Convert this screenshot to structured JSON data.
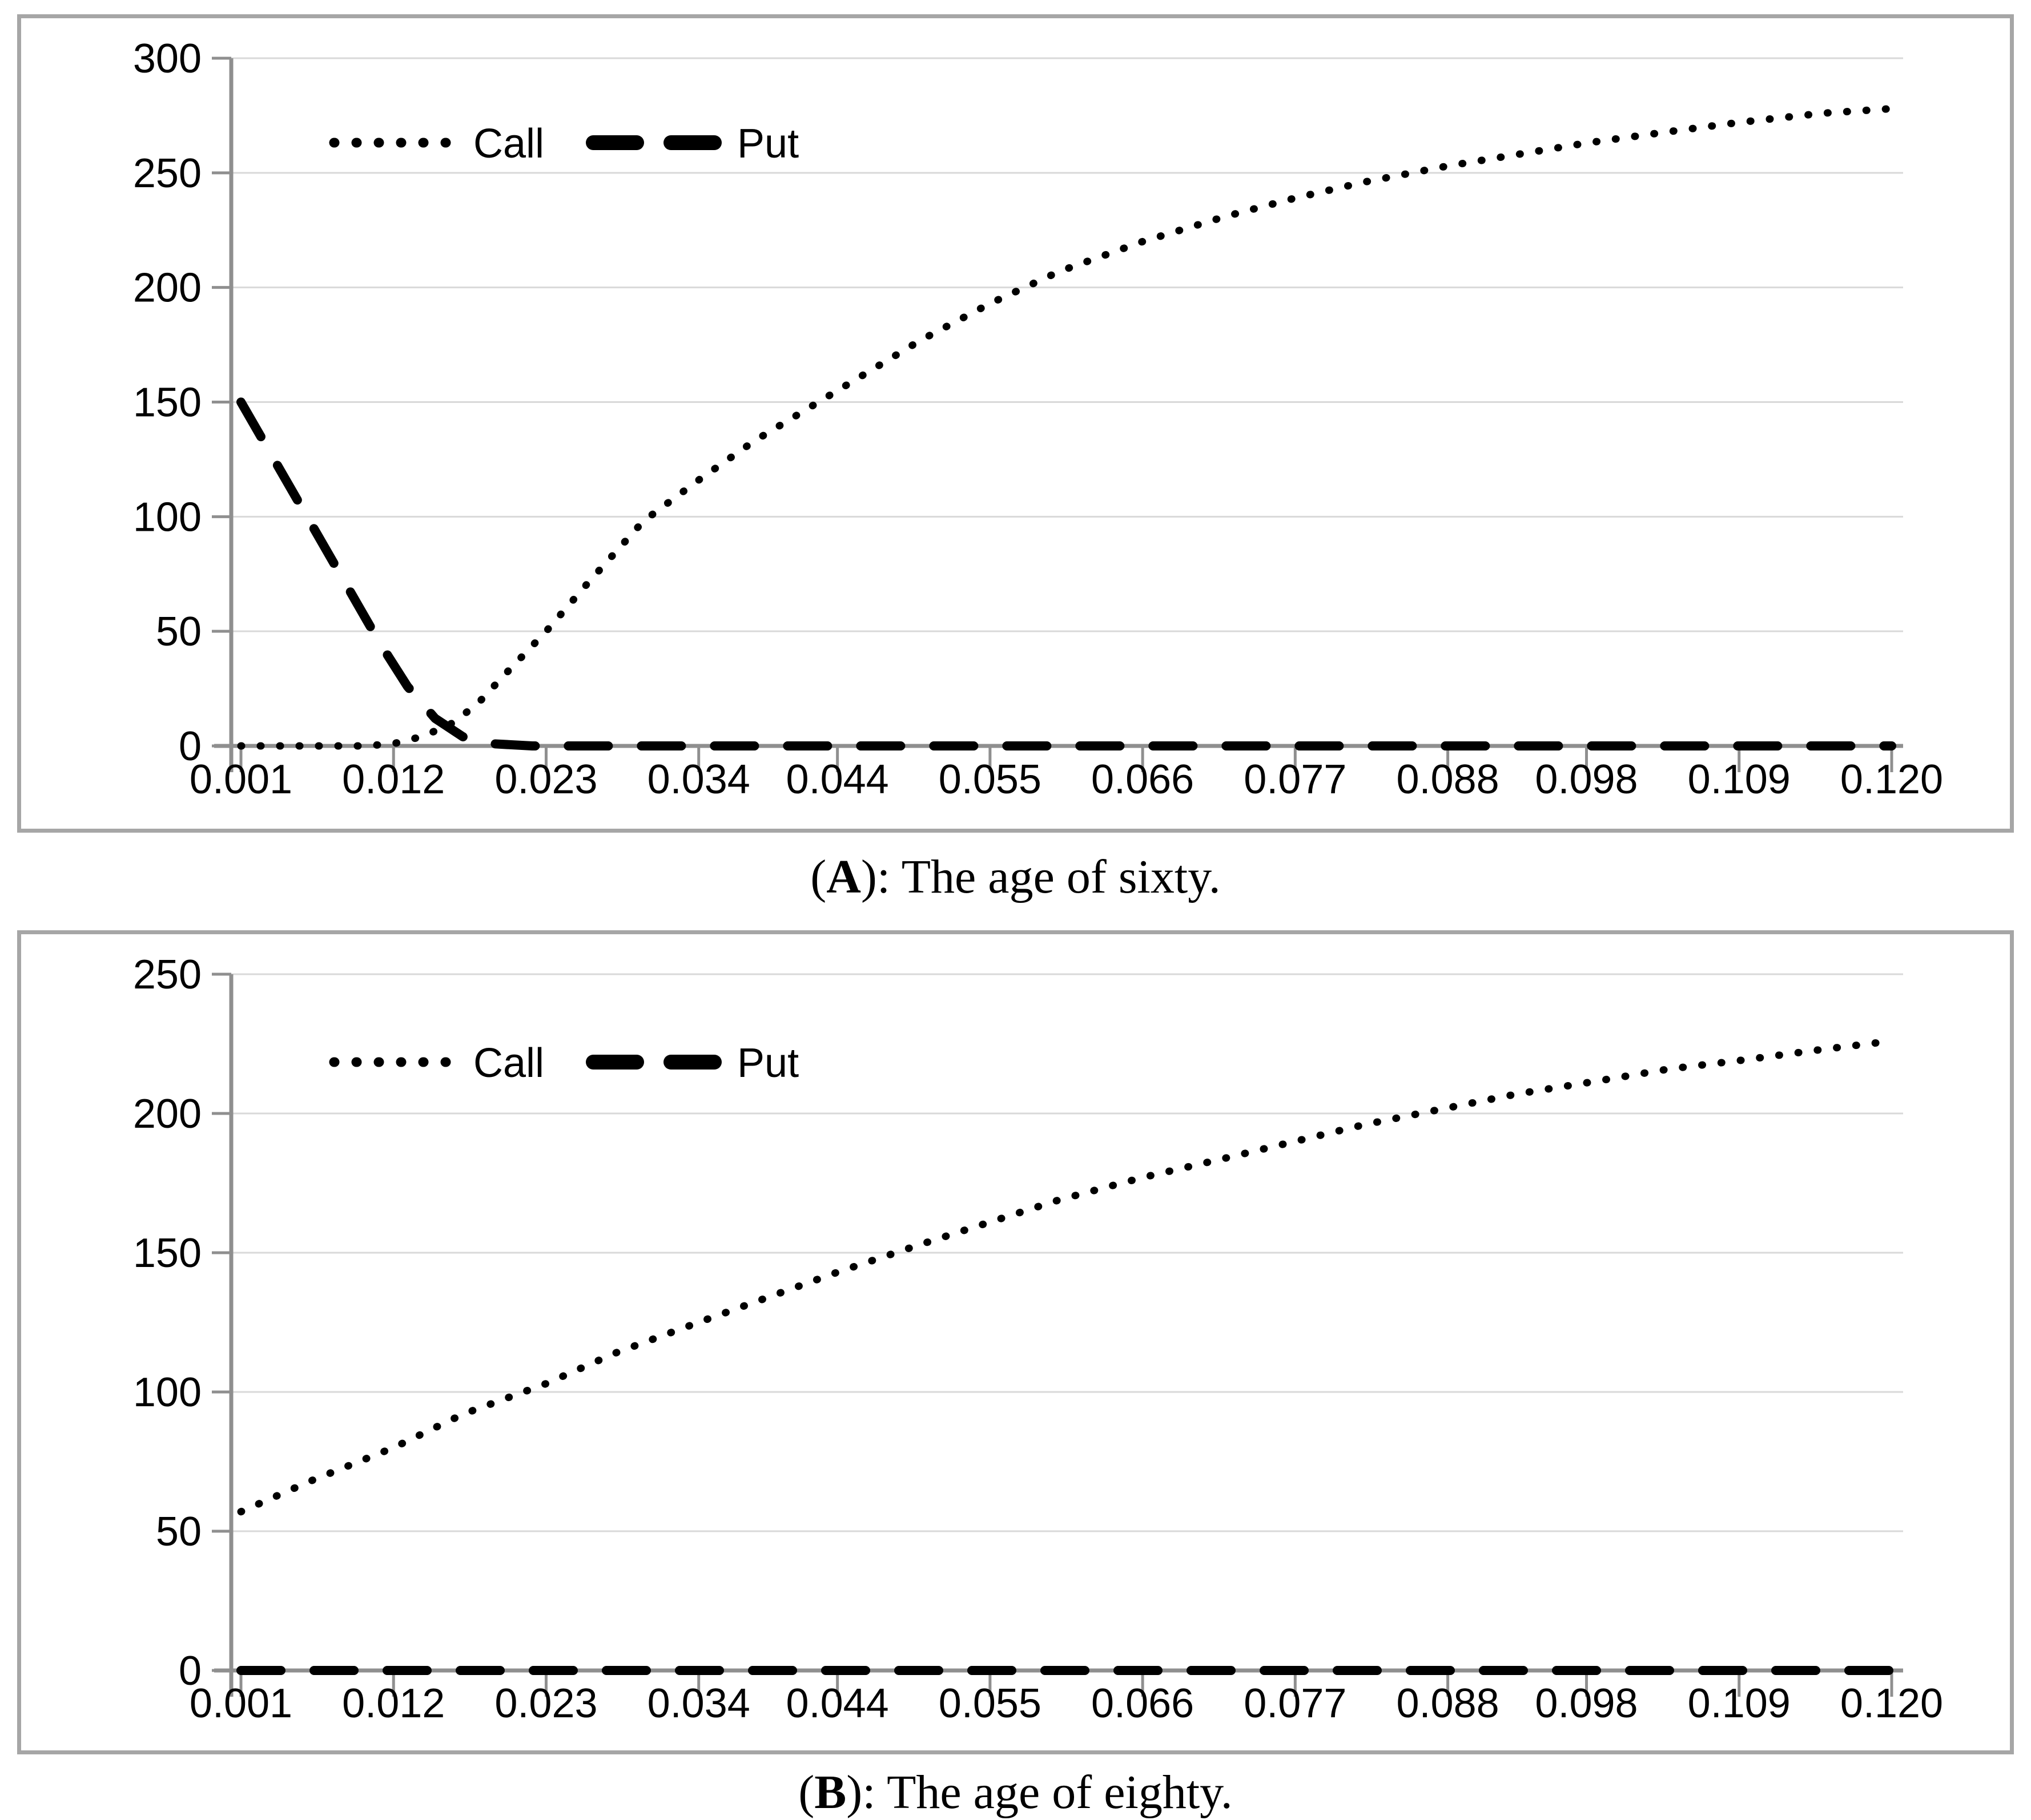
{
  "colors": {
    "background": "#ffffff",
    "box_border": "#a6a6a6",
    "axis": "#8f8f8f",
    "gridline": "#d9d9d9",
    "series": "#000000",
    "text": "#000000"
  },
  "charts": [
    {
      "id": "A",
      "caption": {
        "open": "(",
        "letter": "A",
        "rest": "): The age of sixty."
      },
      "chart_data": {
        "type": "line",
        "title": "",
        "xlabel": "",
        "ylabel": "",
        "xlim": [
          0.001,
          0.12
        ],
        "ylim": [
          0,
          300
        ],
        "grid": "horizontal",
        "legend_position": "top-left-inside",
        "x_tick_labels": [
          "0.001",
          "0.012",
          "0.023",
          "0.034",
          "0.044",
          "0.055",
          "0.066",
          "0.077",
          "0.088",
          "0.098",
          "0.109",
          "0.120"
        ],
        "y_ticks": [
          0,
          50,
          100,
          150,
          200,
          250,
          300
        ],
        "series": [
          {
            "name": "Call",
            "style": "dotted",
            "x": [
              0.001,
              0.004,
              0.007,
              0.01,
              0.012,
              0.014,
              0.016,
              0.018,
              0.02,
              0.023,
              0.026,
              0.03,
              0.034,
              0.038,
              0.044,
              0.05,
              0.055,
              0.06,
              0.066,
              0.072,
              0.077,
              0.082,
              0.088,
              0.093,
              0.098,
              0.104,
              0.109,
              0.115,
              0.12
            ],
            "y": [
              0,
              0,
              0,
              0,
              1,
              4,
              9,
              18,
              31,
              50,
              71,
              98,
              116,
              133,
              155,
              177,
              193,
              207,
              220,
              231,
              239,
              246,
              253,
              258,
              263,
              268,
              272,
              276,
              278
            ]
          },
          {
            "name": "Put",
            "style": "dashed",
            "x": [
              0.001,
              0.003,
              0.005,
              0.007,
              0.009,
              0.011,
              0.013,
              0.015,
              0.017,
              0.019,
              0.022,
              0.034,
              0.044,
              0.055,
              0.066,
              0.077,
              0.088,
              0.098,
              0.109,
              0.12
            ],
            "y": [
              150,
              129,
              108,
              87,
              66,
              45,
              26,
              12,
              4,
              1,
              0,
              0,
              0,
              0,
              0,
              0,
              0,
              0,
              0,
              0
            ]
          }
        ]
      }
    },
    {
      "id": "B",
      "caption": {
        "open": "(",
        "letter": "B",
        "rest": "): The age of eighty."
      },
      "chart_data": {
        "type": "line",
        "title": "",
        "xlabel": "",
        "ylabel": "",
        "xlim": [
          0.001,
          0.12
        ],
        "ylim": [
          0,
          250
        ],
        "grid": "horizontal",
        "legend_position": "top-left-inside",
        "x_tick_labels": [
          "0.001",
          "0.012",
          "0.023",
          "0.034",
          "0.044",
          "0.055",
          "0.066",
          "0.077",
          "0.088",
          "0.098",
          "0.109",
          "0.120"
        ],
        "y_ticks": [
          0,
          50,
          100,
          150,
          200,
          250
        ],
        "series": [
          {
            "name": "Call",
            "style": "dotted",
            "x": [
              0.001,
              0.006,
              0.012,
              0.017,
              0.023,
              0.028,
              0.034,
              0.039,
              0.044,
              0.05,
              0.055,
              0.06,
              0.066,
              0.072,
              0.077,
              0.082,
              0.088,
              0.093,
              0.098,
              0.104,
              0.109,
              0.115,
              0.12
            ],
            "y": [
              57,
              68,
              80,
              92,
              103,
              114,
              125,
              134,
              143,
              153,
              161,
              169,
              177,
              184,
              190,
              196,
              202,
              207,
              211,
              216,
              219,
              223,
              226
            ]
          },
          {
            "name": "Put",
            "style": "dashed",
            "x": [
              0.001,
              0.012,
              0.023,
              0.034,
              0.044,
              0.055,
              0.066,
              0.077,
              0.088,
              0.098,
              0.109,
              0.12
            ],
            "y": [
              0,
              0,
              0,
              0,
              0,
              0,
              0,
              0,
              0,
              0,
              0,
              0
            ]
          }
        ]
      }
    }
  ]
}
